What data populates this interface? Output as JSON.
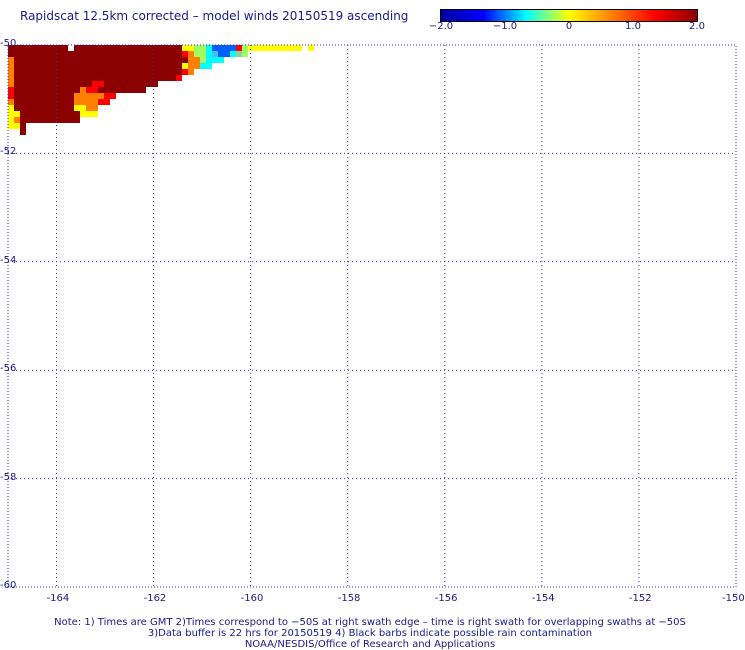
{
  "header": {
    "title": "Rapidscat 12.5km corrected – model winds 20150519 ascending"
  },
  "colorbar": {
    "labels": [
      "−2.0",
      "−1.0",
      "0",
      "1.0",
      "2.0"
    ],
    "values": [
      -2.0,
      -1.0,
      0,
      1.0,
      2.0
    ],
    "colors": [
      "#0000a0",
      "#0000ff",
      "#00ffff",
      "#ffff00",
      "#ff8000",
      "#ff0000",
      "#8b0000"
    ]
  },
  "map": {
    "lon_ticks": [
      "-164",
      "-162",
      "-160",
      "-158",
      "-156",
      "-154",
      "-152",
      "-150"
    ],
    "lat_ticks": [
      "-50",
      "-52",
      "-54",
      "-56",
      "-58",
      "-60"
    ],
    "lon_range": [
      -165,
      -150
    ],
    "lat_range": [
      -50,
      -60
    ]
  },
  "notes": {
    "line1": "Note: 1) Times are GMT 2)Times correspond to −50S at right swath edge – time is right swath for overlapping swaths at −50S",
    "line2": "3)Data buffer is 22 hrs for 20150519 4) Black barbs indicate possible rain contamination",
    "line3": "NOAA/NESDIS/Office of Research and Applications"
  }
}
